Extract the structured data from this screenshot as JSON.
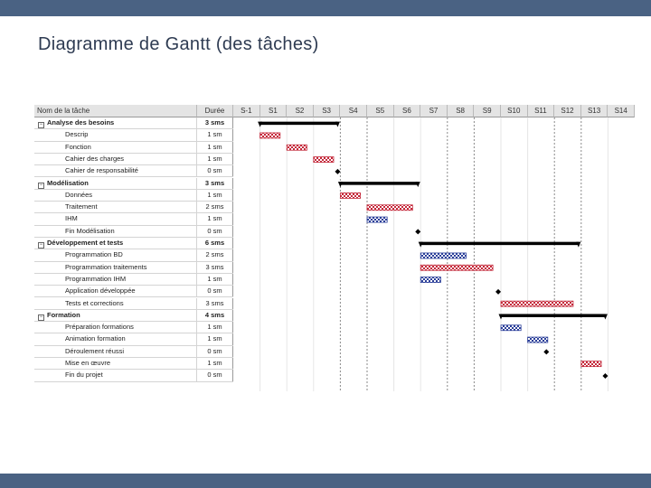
{
  "title": "Diagramme de Gantt (des tâches)",
  "colors": {
    "header_bar": "#4a6283",
    "red_task": "#c4283a",
    "blue_task": "#2b3f99",
    "summary": "#000000"
  },
  "chart_data": {
    "type": "gantt",
    "columns": {
      "name": "Nom de la tâche",
      "duration": "Durée"
    },
    "weeks": [
      "S-1",
      "S1",
      "S2",
      "S3",
      "S4",
      "S5",
      "S6",
      "S7",
      "S8",
      "S9",
      "S10",
      "S11",
      "S12",
      "S13",
      "S14"
    ],
    "dashed_week_separators": [
      "S3",
      "S4",
      "S7",
      "S8",
      "S11",
      "S12"
    ],
    "tasks": [
      {
        "name": "Analyse des besoins",
        "duration": "3 sms",
        "level": 0,
        "kind": "summary",
        "start": 1.0,
        "end": 3.9
      },
      {
        "name": "Descrip",
        "duration": "1 sm",
        "level": 1,
        "kind": "task",
        "color": "red",
        "start": 1.0,
        "end": 1.75
      },
      {
        "name": "Fonction",
        "duration": "1 sm",
        "level": 1,
        "kind": "task",
        "color": "red",
        "start": 2.0,
        "end": 2.75
      },
      {
        "name": "Cahier des charges",
        "duration": "1 sm",
        "level": 1,
        "kind": "task",
        "color": "red",
        "start": 3.0,
        "end": 3.75
      },
      {
        "name": "Cahier de responsabilité",
        "duration": "0 sm",
        "level": 1,
        "kind": "milestone",
        "start": 3.9
      },
      {
        "name": "Modélisation",
        "duration": "3 sms",
        "level": 0,
        "kind": "summary",
        "start": 4.0,
        "end": 6.9
      },
      {
        "name": "Données",
        "duration": "1 sm",
        "level": 1,
        "kind": "task",
        "color": "red",
        "start": 4.0,
        "end": 4.75
      },
      {
        "name": "Traitement",
        "duration": "2 sms",
        "level": 1,
        "kind": "task",
        "color": "red",
        "start": 5.0,
        "end": 6.7
      },
      {
        "name": "IHM",
        "duration": "1 sm",
        "level": 1,
        "kind": "task",
        "color": "blue",
        "start": 5.0,
        "end": 5.75
      },
      {
        "name": "Fin Modélisation",
        "duration": "0 sm",
        "level": 1,
        "kind": "milestone",
        "start": 6.9
      },
      {
        "name": "Développement et tests",
        "duration": "6 sms",
        "level": 0,
        "kind": "summary",
        "start": 7.0,
        "end": 12.9
      },
      {
        "name": "Programmation BD",
        "duration": "2 sms",
        "level": 1,
        "kind": "task",
        "color": "blue",
        "start": 7.0,
        "end": 8.7
      },
      {
        "name": "Programmation traitements",
        "duration": "3 sms",
        "level": 1,
        "kind": "task",
        "color": "red",
        "start": 7.0,
        "end": 9.7
      },
      {
        "name": "Programmation IHM",
        "duration": "1 sm",
        "level": 1,
        "kind": "task",
        "color": "blue",
        "start": 7.0,
        "end": 7.75
      },
      {
        "name": "Application développée",
        "duration": "0 sm",
        "level": 1,
        "kind": "milestone",
        "start": 9.9
      },
      {
        "name": "Tests et corrections",
        "duration": "3 sms",
        "level": 1,
        "kind": "task",
        "color": "red",
        "start": 10.0,
        "end": 12.7
      },
      {
        "name": "Formation",
        "duration": "4 sms",
        "level": 0,
        "kind": "summary",
        "start": 10.0,
        "end": 13.9
      },
      {
        "name": "Préparation formations",
        "duration": "1 sm",
        "level": 1,
        "kind": "task",
        "color": "blue",
        "start": 10.0,
        "end": 10.75
      },
      {
        "name": "Animation formation",
        "duration": "1 sm",
        "level": 1,
        "kind": "task",
        "color": "blue",
        "start": 11.0,
        "end": 11.75
      },
      {
        "name": "Déroulement réussi",
        "duration": "0 sm",
        "level": 1,
        "kind": "milestone",
        "start": 11.7
      },
      {
        "name": "Mise en œuvre",
        "duration": "1 sm",
        "level": 1,
        "kind": "task",
        "color": "red",
        "start": 13.0,
        "end": 13.75
      },
      {
        "name": "Fin du projet",
        "duration": "0 sm",
        "level": 1,
        "kind": "milestone",
        "start": 13.9
      }
    ]
  }
}
